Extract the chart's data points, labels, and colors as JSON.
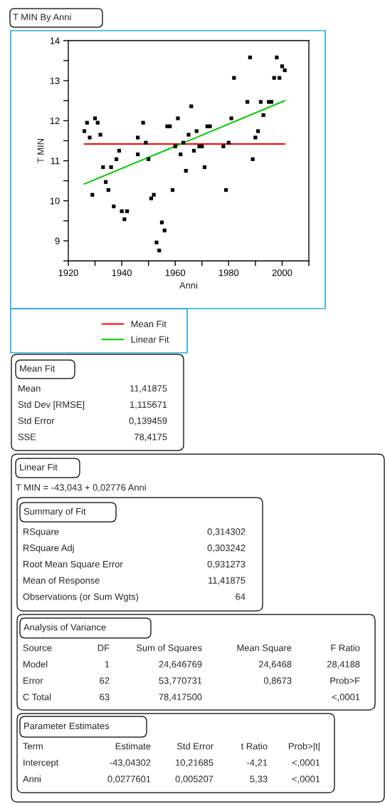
{
  "chart_data": [
    {
      "type": "scatter",
      "title": "T MIN By Anni",
      "xlabel": "Anni",
      "ylabel": "T MIN",
      "legend": "bottom",
      "xlim": [
        1920,
        2010
      ],
      "xticks": [
        1920,
        {
          "value": 1930,
          "label": null
        },
        1940,
        {
          "value": 1950,
          "label": null
        },
        1960,
        {
          "value": 1970,
          "label": null
        },
        1980,
        {
          "value": 1990,
          "label": null
        },
        2000,
        {
          "value": 2010,
          "label": null
        }
      ],
      "ylim": [
        8.5,
        14
      ],
      "yticks": [
        {
          "value": 8.5,
          "label": null
        },
        9,
        {
          "value": 9.5,
          "label": null
        },
        10,
        {
          "value": 10.5,
          "label": null
        },
        11,
        {
          "value": 11.5,
          "label": null
        },
        12,
        {
          "value": 12.5,
          "label": null
        },
        13,
        {
          "value": 13.5,
          "label": null
        },
        14
      ],
      "series": [
        {
          "type": "scatter",
          "color": "#000000",
          "marker": "square",
          "x": [
            1926,
            1927,
            1928,
            1929,
            1930,
            1931,
            1932,
            1933,
            1934,
            1935,
            1936,
            1937,
            1938,
            1939,
            1940,
            1941,
            1942,
            1946,
            1946,
            1948,
            1949,
            1950,
            1951,
            1952,
            1953,
            1954,
            1955,
            1956,
            1957,
            1958,
            1959,
            1960,
            1961,
            1962,
            1963,
            1964,
            1965,
            1966,
            1967,
            1968,
            1969,
            1970,
            1971,
            1972,
            1973,
            1978,
            1979,
            1980,
            1981,
            1982,
            1987,
            1988,
            1989,
            1990,
            1991,
            1992,
            1993,
            1995,
            1996,
            1997,
            1998,
            1999,
            2000,
            2001
          ],
          "values": [
            11.74,
            11.95,
            11.58,
            10.15,
            12.06,
            11.95,
            11.65,
            10.84,
            10.47,
            10.27,
            10.84,
            9.86,
            11.04,
            11.25,
            9.74,
            9.54,
            9.74,
            11.58,
            11.16,
            11.95,
            11.45,
            11.04,
            10.06,
            10.15,
            8.96,
            8.76,
            9.46,
            9.26,
            11.86,
            11.86,
            10.27,
            11.36,
            12.06,
            11.16,
            11.45,
            10.75,
            11.65,
            12.36,
            11.25,
            11.74,
            11.36,
            11.36,
            10.84,
            11.86,
            11.86,
            11.36,
            10.27,
            11.45,
            12.06,
            13.07,
            12.47,
            13.58,
            11.04,
            11.58,
            11.74,
            12.47,
            12.14,
            12.47,
            12.47,
            13.07,
            13.58,
            13.07,
            13.36,
            13.26
          ]
        },
        {
          "type": "line",
          "name": "Mean Fit",
          "color": "#ff0000",
          "x": [
            1926,
            2001
          ],
          "values": [
            11.42,
            11.42
          ]
        },
        {
          "type": "line",
          "name": "Linear Fit",
          "color": "#00cc00",
          "x": [
            1926,
            2001
          ],
          "values": [
            10.42,
            12.5
          ]
        }
      ]
    },
    {
      "type": "other",
      "title": "Mean Fit",
      "annotations": [
        "Mean",
        "11,41875",
        "Std Dev [RMSE]",
        "1,115671",
        "Std Error",
        "0,139459",
        "SSE",
        "78,4175"
      ]
    },
    {
      "type": "other",
      "title": "Linear Fit",
      "subtitle": "T MIN = -43,043 + 0,02776 Anni"
    },
    {
      "type": "other",
      "title": "Summary of Fit",
      "annotations": [
        "RSquare",
        "0,314302",
        "RSquare Adj",
        "0,303242",
        "Root Mean Square Error",
        "0,931273",
        "Mean of Response",
        "11,41875",
        "Observations (or Sum Wgts)",
        "64"
      ]
    },
    {
      "type": "other",
      "title": "Analysis of Variance",
      "annotations": [
        "Source",
        "DF",
        "Sum of Squares",
        "Mean Square",
        "F Ratio",
        "Model",
        "1",
        "24,646769",
        "24,6468",
        "28,4188",
        "Error",
        "62",
        "53,770731",
        "0,8673",
        "Prob>F",
        "C Total",
        "63",
        "78,417500",
        null,
        "<,0001"
      ]
    },
    {
      "type": "other",
      "title": "Parameter Estimates",
      "annotations": [
        "Term",
        "Estimate",
        "Std Error",
        "t Ratio",
        "Prob>|t|",
        "Intercept",
        "-43,04302",
        "10,21685",
        "-4,21",
        "<,0001",
        "Anni",
        "0,0277601",
        "0,005207",
        "5,33",
        "<,0001"
      ]
    }
  ]
}
